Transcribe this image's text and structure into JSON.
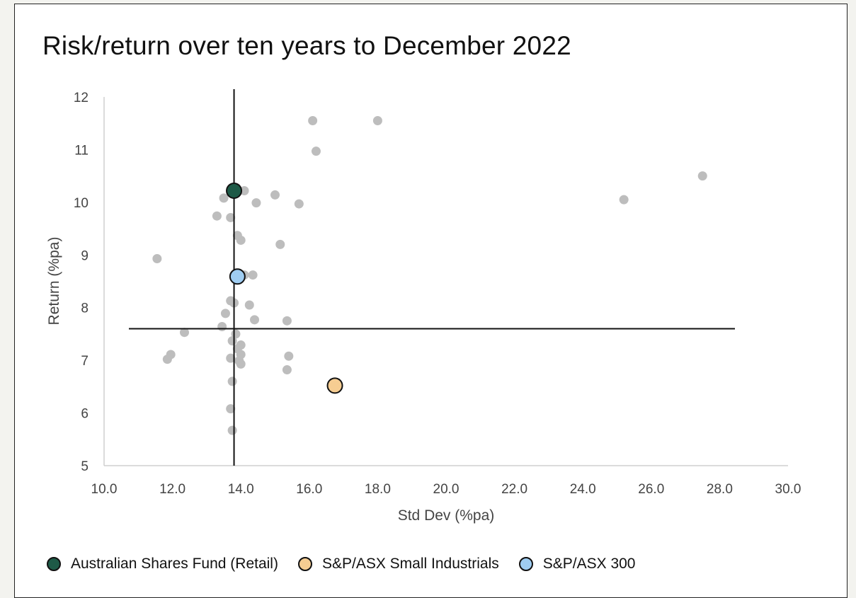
{
  "chart_data": {
    "type": "scatter",
    "title": "Risk/return over ten years to December 2022",
    "xlabel": "Std Dev (%pa)",
    "ylabel": "Return (%pa)",
    "xlim": [
      10.0,
      30.0
    ],
    "ylim": [
      5,
      12
    ],
    "x_ticks": [
      "10.0",
      "12.0",
      "14.0",
      "16.0",
      "18.0",
      "20.0",
      "22.0",
      "24.0",
      "26.0",
      "28.0",
      "30.0"
    ],
    "y_ticks": [
      "5",
      "6",
      "7",
      "8",
      "9",
      "10",
      "11",
      "12"
    ],
    "grid": false,
    "legend_position": "bottom",
    "reference_lines": {
      "x": 13.8,
      "y": 7.6
    },
    "peer_color": "#bdbdbd",
    "peers": [
      {
        "x": 16.1,
        "y": 11.55
      },
      {
        "x": 18.0,
        "y": 11.55
      },
      {
        "x": 16.2,
        "y": 10.97
      },
      {
        "x": 27.5,
        "y": 10.5
      },
      {
        "x": 25.2,
        "y": 10.05
      },
      {
        "x": 13.5,
        "y": 10.08
      },
      {
        "x": 15.0,
        "y": 10.14
      },
      {
        "x": 14.45,
        "y": 9.99
      },
      {
        "x": 15.7,
        "y": 9.97
      },
      {
        "x": 14.1,
        "y": 10.22
      },
      {
        "x": 13.3,
        "y": 9.74
      },
      {
        "x": 13.7,
        "y": 9.71
      },
      {
        "x": 13.9,
        "y": 9.37
      },
      {
        "x": 14.0,
        "y": 9.28
      },
      {
        "x": 15.15,
        "y": 9.2
      },
      {
        "x": 11.55,
        "y": 8.93
      },
      {
        "x": 14.35,
        "y": 8.62
      },
      {
        "x": 14.1,
        "y": 8.62
      },
      {
        "x": 13.7,
        "y": 8.13
      },
      {
        "x": 13.8,
        "y": 8.09
      },
      {
        "x": 14.25,
        "y": 8.05
      },
      {
        "x": 13.55,
        "y": 7.89
      },
      {
        "x": 14.4,
        "y": 7.77
      },
      {
        "x": 15.35,
        "y": 7.75
      },
      {
        "x": 13.45,
        "y": 7.64
      },
      {
        "x": 12.35,
        "y": 7.53
      },
      {
        "x": 13.85,
        "y": 7.5
      },
      {
        "x": 13.75,
        "y": 7.37
      },
      {
        "x": 14.0,
        "y": 7.29
      },
      {
        "x": 13.9,
        "y": 7.22
      },
      {
        "x": 11.95,
        "y": 7.11
      },
      {
        "x": 14.0,
        "y": 7.11
      },
      {
        "x": 15.4,
        "y": 7.08
      },
      {
        "x": 11.85,
        "y": 7.02
      },
      {
        "x": 13.7,
        "y": 7.04
      },
      {
        "x": 13.95,
        "y": 6.99
      },
      {
        "x": 14.0,
        "y": 6.93
      },
      {
        "x": 15.35,
        "y": 6.82
      },
      {
        "x": 13.75,
        "y": 6.6
      },
      {
        "x": 13.7,
        "y": 6.08
      },
      {
        "x": 13.75,
        "y": 5.67
      }
    ],
    "series": [
      {
        "name": "Australian Shares Fund (Retail)",
        "color": "#1e5a47",
        "x": 13.8,
        "y": 10.22
      },
      {
        "name": "S&P/ASX Small Industrials",
        "color": "#f6cd92",
        "x": 16.75,
        "y": 6.52
      },
      {
        "name": "S&P/ASX 300",
        "color": "#9fcdf2",
        "x": 13.9,
        "y": 8.59
      }
    ]
  }
}
